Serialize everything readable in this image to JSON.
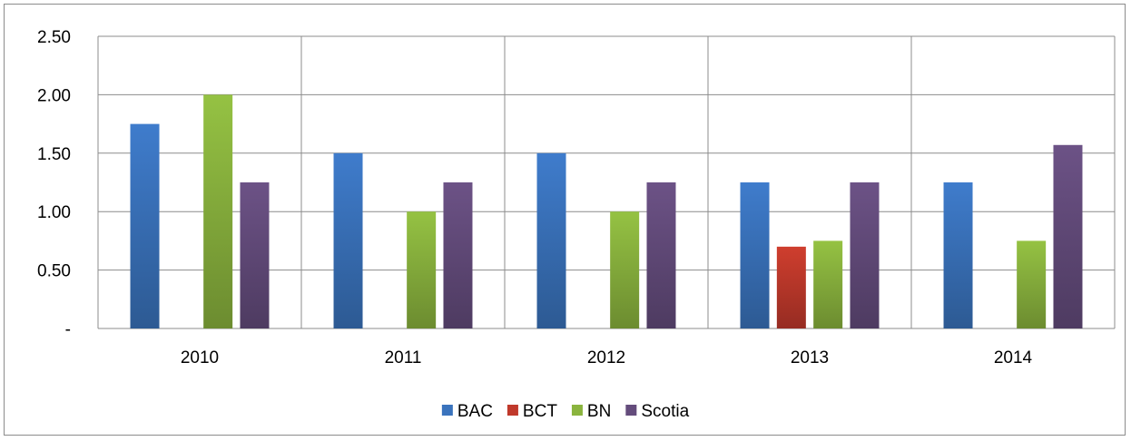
{
  "chart_data": {
    "type": "bar",
    "categories": [
      "2010",
      "2011",
      "2012",
      "2013",
      "2014"
    ],
    "series": [
      {
        "name": "BAC",
        "values": [
          1.75,
          1.5,
          1.5,
          1.25,
          1.25
        ],
        "color": "#3a73bd"
      },
      {
        "name": "BCT",
        "values": [
          null,
          null,
          null,
          0.7,
          null
        ],
        "color": "#c0392b"
      },
      {
        "name": "BN",
        "values": [
          2.0,
          1.0,
          1.0,
          0.75,
          0.75
        ],
        "color": "#8ab43e"
      },
      {
        "name": "Scotia",
        "values": [
          1.25,
          1.25,
          1.25,
          1.25,
          1.57
        ],
        "color": "#644c7c"
      }
    ],
    "ylim": [
      0,
      2.5
    ],
    "yticks": [
      {
        "value": 0,
        "label": "-"
      },
      {
        "value": 0.5,
        "label": "0.50"
      },
      {
        "value": 1.0,
        "label": "1.00"
      },
      {
        "value": 1.5,
        "label": "1.50"
      },
      {
        "value": 2.0,
        "label": "2.00"
      },
      {
        "value": 2.5,
        "label": "2.50"
      }
    ],
    "grid": true,
    "legend_position": "bottom",
    "title": "",
    "xlabel": "",
    "ylabel": ""
  }
}
